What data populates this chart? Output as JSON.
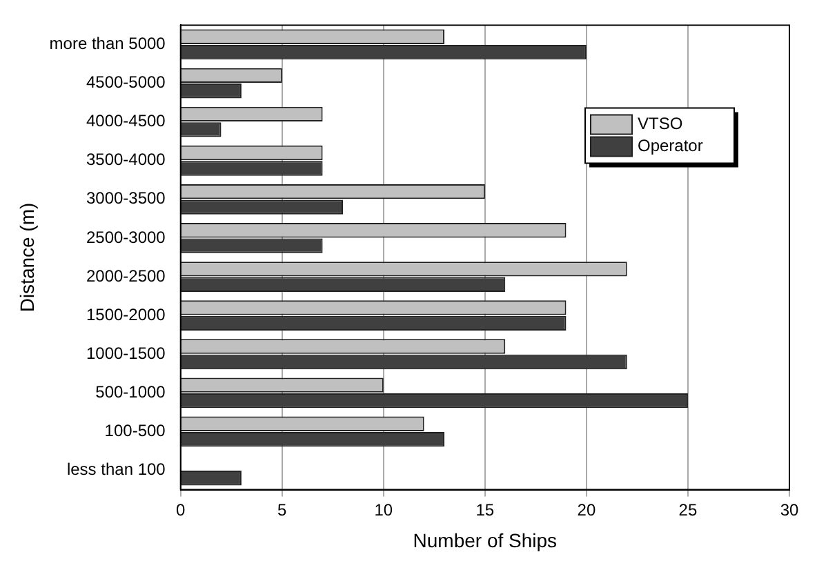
{
  "chart_data": {
    "type": "bar",
    "orientation": "horizontal",
    "xlabel": "Number of Ships",
    "ylabel": "Distance (m)",
    "categories": [
      "more than 5000",
      "4500-5000",
      "4000-4500",
      "3500-4000",
      "3000-3500",
      "2500-3000",
      "2000-2500",
      "1500-2000",
      "1000-1500",
      "500-1000",
      "100-500",
      "less than 100"
    ],
    "series": [
      {
        "name": "VTSO",
        "color": "#c0c0c0",
        "values": [
          13,
          5,
          7,
          7,
          15,
          19,
          22,
          19,
          16,
          10,
          12,
          0
        ]
      },
      {
        "name": "Operator",
        "color": "#404040",
        "values": [
          20,
          3,
          2,
          7,
          8,
          7,
          16,
          19,
          22,
          25,
          13,
          3
        ]
      }
    ],
    "xlim": [
      0,
      30
    ],
    "xticks": [
      0,
      5,
      10,
      15,
      20,
      25,
      30
    ],
    "grid": "x",
    "legend": "top right"
  }
}
